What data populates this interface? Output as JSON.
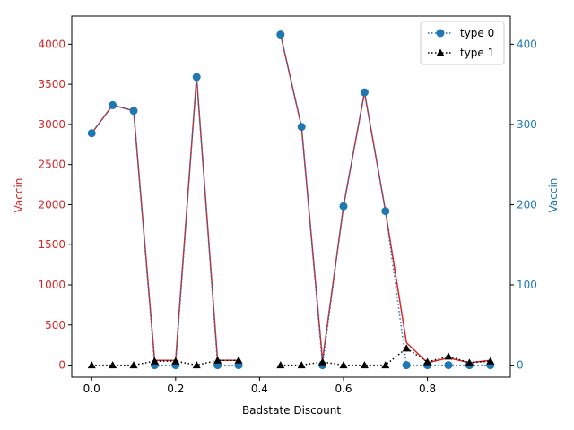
{
  "chart_data": {
    "type": "line",
    "xlabel": "Badstate Discount",
    "ylabel_left": "Vaccin",
    "ylabel_right": "Vaccin",
    "xlim": [
      -0.0475,
      0.9975
    ],
    "ylim_left": [
      -150,
      4350
    ],
    "ylim_right": [
      -15,
      435
    ],
    "x_ticks": [
      0.0,
      0.2,
      0.4,
      0.6,
      0.8
    ],
    "x_tick_labels": [
      "0.0",
      "0.2",
      "0.4",
      "0.6",
      "0.8"
    ],
    "y_left_ticks": [
      0,
      500,
      1000,
      1500,
      2000,
      2500,
      3000,
      3500,
      4000
    ],
    "y_left_tick_labels": [
      "0",
      "500",
      "1000",
      "1500",
      "2000",
      "2500",
      "3000",
      "3500",
      "4000"
    ],
    "y_right_ticks": [
      0,
      100,
      200,
      300,
      400
    ],
    "y_right_tick_labels": [
      "0",
      "100",
      "200",
      "300",
      "400"
    ],
    "left_axis_color": "#d62728",
    "right_axis_color": "#1f77b4",
    "grid": false,
    "legend_position": "top-right",
    "left_series": {
      "axis": "left",
      "color": "#d62728",
      "x": [
        0.0,
        0.05,
        0.1,
        0.15,
        0.2,
        0.25,
        0.3,
        0.35,
        0.4,
        0.45,
        0.5,
        0.55,
        0.6,
        0.65,
        0.7,
        0.75,
        0.8,
        0.85,
        0.9,
        0.95
      ],
      "values": [
        2890,
        3240,
        3170,
        60,
        60,
        3590,
        60,
        60,
        null,
        4120,
        2970,
        60,
        1980,
        3400,
        1920,
        280,
        30,
        90,
        30,
        60
      ]
    },
    "series": [
      {
        "name": "type 0",
        "axis": "right",
        "color": "#1f77b4",
        "marker": "circle",
        "linestyle": "dotted",
        "x": [
          0.0,
          0.05,
          0.1,
          0.15,
          0.2,
          0.25,
          0.3,
          0.35,
          0.4,
          0.45,
          0.5,
          0.55,
          0.6,
          0.65,
          0.7,
          0.75,
          0.8,
          0.85,
          0.9,
          0.95
        ],
        "values": [
          289,
          324,
          317,
          0,
          0,
          359,
          0,
          0,
          null,
          412,
          297,
          0,
          198,
          340,
          192,
          0,
          0,
          0,
          0,
          0
        ]
      },
      {
        "name": "type 1",
        "axis": "right",
        "color": "#000000",
        "marker": "triangle",
        "linestyle": "dotted",
        "x": [
          0.0,
          0.05,
          0.1,
          0.15,
          0.2,
          0.25,
          0.3,
          0.35,
          0.4,
          0.45,
          0.5,
          0.55,
          0.6,
          0.65,
          0.7,
          0.75,
          0.8,
          0.85,
          0.9,
          0.95
        ],
        "values": [
          0,
          0,
          0,
          5,
          5,
          0,
          6,
          6,
          null,
          0,
          0,
          4,
          0,
          0,
          0,
          21,
          4,
          11,
          3,
          5
        ]
      }
    ]
  }
}
